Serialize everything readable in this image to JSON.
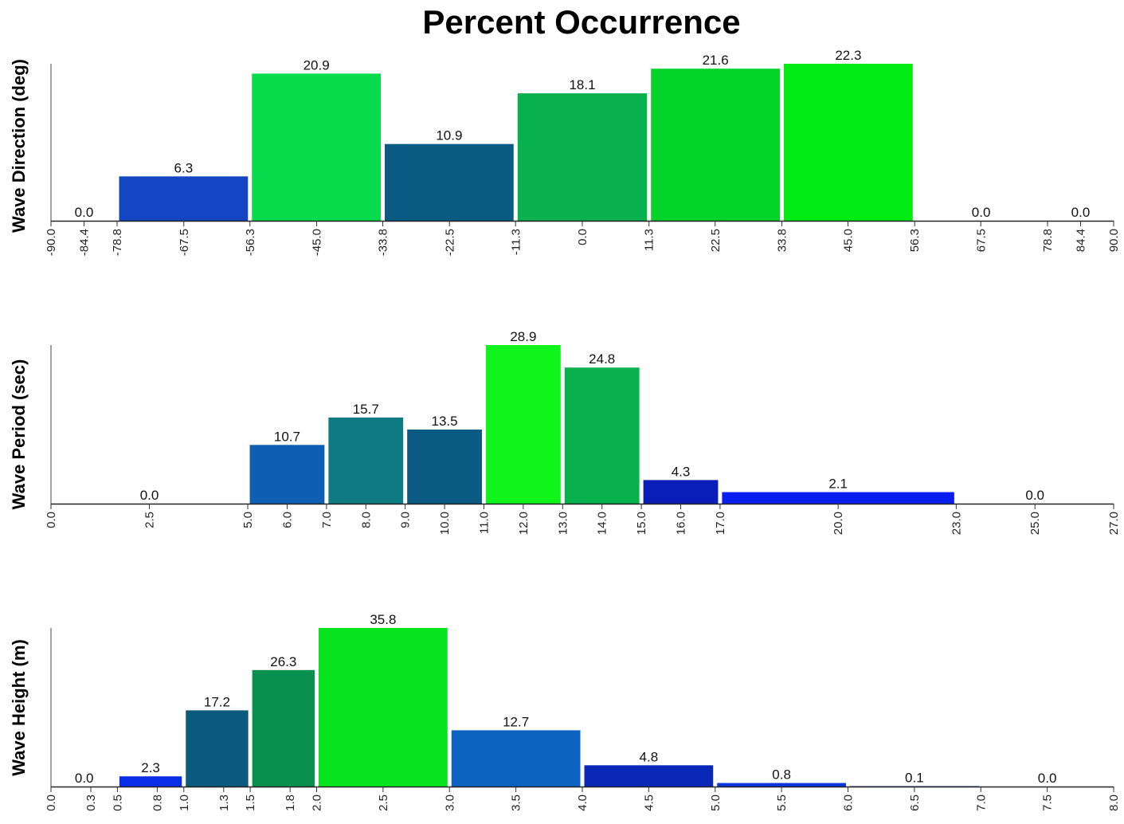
{
  "title": "Percent Occurrence",
  "chart_data": [
    {
      "type": "bar",
      "ylabel": "Wave Direction (deg)",
      "xlim": [
        -90,
        90
      ],
      "ticks": [
        "-90.0",
        "-84.4",
        "-78.8",
        "-67.5",
        "-56.3",
        "-45.0",
        "-33.8",
        "-22.5",
        "-11.3",
        "0.0",
        "11.3",
        "22.5",
        "33.8",
        "45.0",
        "56.3",
        "67.5",
        "78.8",
        "84.4",
        "90.0"
      ],
      "bins": [
        {
          "from": -90.0,
          "to": -78.8,
          "center": "-84.4",
          "value": 0.0,
          "label": "0.0",
          "color": "#1446c4"
        },
        {
          "from": -78.8,
          "to": -56.3,
          "center": "-67.5",
          "value": 6.3,
          "label": "6.3",
          "color": "#1446c4"
        },
        {
          "from": -56.3,
          "to": -33.8,
          "center": "-45.0",
          "value": 20.9,
          "label": "20.9",
          "color": "#09dc4c"
        },
        {
          "from": -33.8,
          "to": -11.3,
          "center": "-22.5",
          "value": 10.9,
          "label": "10.9",
          "color": "#0b5a84"
        },
        {
          "from": -11.3,
          "to": 11.3,
          "center": "0.0",
          "value": 18.1,
          "label": "18.1",
          "color": "#08b04e"
        },
        {
          "from": 11.3,
          "to": 33.8,
          "center": "22.5",
          "value": 21.6,
          "label": "21.6",
          "color": "#04d42a"
        },
        {
          "from": 33.8,
          "to": 56.3,
          "center": "45.0",
          "value": 22.3,
          "label": "22.3",
          "color": "#02ec14"
        },
        {
          "from": 56.3,
          "to": 78.8,
          "center": "67.5",
          "value": 0.0,
          "label": "0.0",
          "color": "#1446c4"
        },
        {
          "from": 78.8,
          "to": 90.0,
          "center": "84.4",
          "value": 0.0,
          "label": "0.0",
          "color": "#1446c4"
        }
      ]
    },
    {
      "type": "bar",
      "ylabel": "Wave Period (sec)",
      "xlim": [
        0,
        27
      ],
      "ticks": [
        "0.0",
        "2.5",
        "5.0",
        "6.0",
        "7.0",
        "8.0",
        "9.0",
        "10.0",
        "11.0",
        "12.0",
        "13.0",
        "14.0",
        "15.0",
        "16.0",
        "17.0",
        "20.0",
        "23.0",
        "25.0",
        "27.0"
      ],
      "bins": [
        {
          "from": 0.0,
          "to": 5.0,
          "center": "2.5",
          "value": 0.0,
          "label": "0.0",
          "color": "#1446c4"
        },
        {
          "from": 5.0,
          "to": 7.0,
          "center": "6.0",
          "value": 10.7,
          "label": "10.7",
          "color": "#0e5fb4"
        },
        {
          "from": 7.0,
          "to": 9.0,
          "center": "8.0",
          "value": 15.7,
          "label": "15.7",
          "color": "#0e7a82"
        },
        {
          "from": 9.0,
          "to": 11.0,
          "center": "10.0",
          "value": 13.5,
          "label": "13.5",
          "color": "#0b5a84"
        },
        {
          "from": 11.0,
          "to": 13.0,
          "center": "12.0",
          "value": 28.9,
          "label": "28.9",
          "color": "#10f41c"
        },
        {
          "from": 13.0,
          "to": 15.0,
          "center": "14.0",
          "value": 24.8,
          "label": "24.8",
          "color": "#08b04e"
        },
        {
          "from": 15.0,
          "to": 17.0,
          "center": "16.0",
          "value": 4.3,
          "label": "4.3",
          "color": "#0c1eb8"
        },
        {
          "from": 17.0,
          "to": 23.0,
          "center": "20.0",
          "value": 2.1,
          "label": "2.1",
          "color": "#0a1ef0"
        },
        {
          "from": 23.0,
          "to": 27.0,
          "center": "25.0",
          "value": 0.0,
          "label": "0.0",
          "color": "#1446c4"
        }
      ]
    },
    {
      "type": "bar",
      "ylabel": "Wave Height (m)",
      "xlim": [
        0,
        8
      ],
      "ticks": [
        "0.0",
        "0.3",
        "0.5",
        "0.8",
        "1.0",
        "1.3",
        "1.5",
        "1.8",
        "2.0",
        "2.5",
        "3.0",
        "3.5",
        "4.0",
        "4.5",
        "5.0",
        "5.5",
        "6.0",
        "6.5",
        "7.0",
        "7.5",
        "8.0"
      ],
      "bins": [
        {
          "from": 0.0,
          "to": 0.5,
          "center": "0.3",
          "value": 0.0,
          "label": "0.0",
          "color": "#1446c4"
        },
        {
          "from": 0.5,
          "to": 1.0,
          "center": "0.8",
          "value": 2.3,
          "label": "2.3",
          "color": "#0a2ee8"
        },
        {
          "from": 1.0,
          "to": 1.5,
          "center": "1.3",
          "value": 17.2,
          "label": "17.2",
          "color": "#0b5a7e"
        },
        {
          "from": 1.5,
          "to": 2.0,
          "center": "1.8",
          "value": 26.3,
          "label": "26.3",
          "color": "#08904e"
        },
        {
          "from": 2.0,
          "to": 3.0,
          "center": "2.5",
          "value": 35.8,
          "label": "35.8",
          "color": "#08e41e"
        },
        {
          "from": 3.0,
          "to": 4.0,
          "center": "3.5",
          "value": 12.7,
          "label": "12.7",
          "color": "#0e62c2"
        },
        {
          "from": 4.0,
          "to": 5.0,
          "center": "4.5",
          "value": 4.8,
          "label": "4.8",
          "color": "#0a28b8"
        },
        {
          "from": 5.0,
          "to": 6.0,
          "center": "5.5",
          "value": 0.8,
          "label": "0.8",
          "color": "#0a36dc"
        },
        {
          "from": 6.0,
          "to": 7.0,
          "center": "6.5",
          "value": 0.1,
          "label": "0.1",
          "color": "#1436a8"
        },
        {
          "from": 7.0,
          "to": 8.0,
          "center": "7.5",
          "value": 0.0,
          "label": "0.0",
          "color": "#1446c4"
        }
      ]
    }
  ]
}
